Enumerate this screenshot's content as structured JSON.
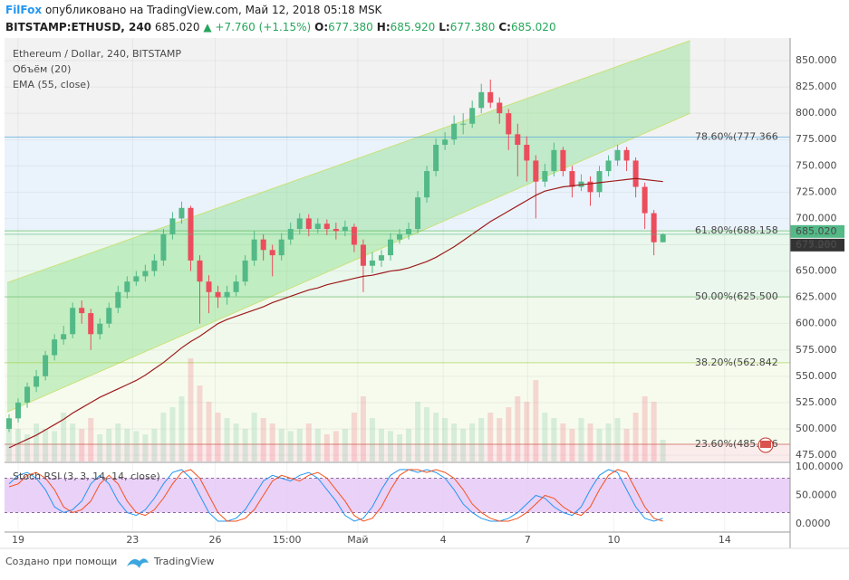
{
  "header": {
    "author": "FilFox",
    "published": "опубликовано на TradingView.com, Май 12, 2018 05:18 MSK",
    "symbol": "BITSTAMP:ETHUSD, 240",
    "price": "685.020",
    "change": "▲ +7.760 (+1.15%)",
    "ohlc": [
      {
        "key": "O:",
        "value": "677.380"
      },
      {
        "key": "H:",
        "value": "685.920"
      },
      {
        "key": "L:",
        "value": "677.380"
      },
      {
        "key": "C:",
        "value": "685.020"
      }
    ]
  },
  "footer": {
    "text": "Создано при помощи",
    "brand": "TradingView"
  },
  "chart_data": {
    "type": "candlestick",
    "legend": [
      "Ethereum / Dollar, 240, BITSTAMP",
      "Объём (20)",
      "EMA (55, close)"
    ],
    "up_color": "#53b987",
    "down_color": "#eb4d5c",
    "grid": true,
    "xlim": [
      -0.5,
      86
    ],
    "ylim": [
      469,
      871.5
    ],
    "yticks": [
      {
        "value": 850,
        "label": "850.000"
      },
      {
        "value": 825,
        "label": "825.000"
      },
      {
        "value": 800,
        "label": "800.000"
      },
      {
        "value": 775,
        "label": "775.000"
      },
      {
        "value": 750,
        "label": "750.000"
      },
      {
        "value": 725,
        "label": "725.000"
      },
      {
        "value": 700,
        "label": "700.000"
      },
      {
        "value": 675,
        "label": "675.000"
      },
      {
        "value": 650,
        "label": "650.000"
      },
      {
        "value": 625,
        "label": "625.000"
      },
      {
        "value": 600,
        "label": "600.000"
      },
      {
        "value": 575,
        "label": "575.000"
      },
      {
        "value": 550,
        "label": "550.000"
      },
      {
        "value": 525,
        "label": "525.000"
      },
      {
        "value": 500,
        "label": "500.000"
      },
      {
        "value": 475,
        "label": "475.000"
      }
    ],
    "xticks": [
      {
        "value": 1,
        "label": "19"
      },
      {
        "value": 13.6,
        "label": "23"
      },
      {
        "value": 22.7,
        "label": "26"
      },
      {
        "value": 30.6,
        "label": "15:00"
      },
      {
        "value": 38.4,
        "label": "Май"
      },
      {
        "value": 47.8,
        "label": "4"
      },
      {
        "value": 57.1,
        "label": "7"
      },
      {
        "value": 66.6,
        "label": "10"
      },
      {
        "value": 78.8,
        "label": "14"
      }
    ],
    "candles": [
      [
        500,
        514,
        497,
        510
      ],
      [
        510,
        529,
        506,
        525
      ],
      [
        525,
        544,
        520,
        540
      ],
      [
        540,
        556,
        535,
        550
      ],
      [
        550,
        574,
        546,
        570
      ],
      [
        570,
        590,
        565,
        585
      ],
      [
        585,
        598,
        580,
        590
      ],
      [
        590,
        620,
        586,
        615
      ],
      [
        615,
        622,
        600,
        610
      ],
      [
        610,
        614,
        575,
        590
      ],
      [
        590,
        605,
        585,
        600
      ],
      [
        600,
        620,
        596,
        615
      ],
      [
        615,
        636,
        610,
        630
      ],
      [
        630,
        645,
        624,
        640
      ],
      [
        640,
        650,
        636,
        645
      ],
      [
        645,
        656,
        640,
        650
      ],
      [
        650,
        666,
        645,
        660
      ],
      [
        660,
        690,
        655,
        685
      ],
      [
        685,
        706,
        680,
        700
      ],
      [
        700,
        716,
        695,
        710
      ],
      [
        710,
        712,
        650,
        660
      ],
      [
        660,
        665,
        600,
        640
      ],
      [
        640,
        646,
        610,
        630
      ],
      [
        630,
        636,
        615,
        625
      ],
      [
        625,
        636,
        618,
        630
      ],
      [
        630,
        646,
        626,
        640
      ],
      [
        640,
        665,
        636,
        660
      ],
      [
        660,
        688,
        655,
        680
      ],
      [
        680,
        685,
        660,
        670
      ],
      [
        670,
        675,
        645,
        665
      ],
      [
        665,
        686,
        660,
        680
      ],
      [
        680,
        696,
        675,
        690
      ],
      [
        690,
        705,
        685,
        700
      ],
      [
        700,
        704,
        683,
        690
      ],
      [
        690,
        700,
        686,
        695
      ],
      [
        695,
        699,
        684,
        690
      ],
      [
        690,
        696,
        680,
        688
      ],
      [
        688,
        698,
        683,
        692
      ],
      [
        692,
        695,
        668,
        675
      ],
      [
        675,
        680,
        630,
        655
      ],
      [
        655,
        668,
        648,
        660
      ],
      [
        660,
        670,
        654,
        665
      ],
      [
        665,
        686,
        660,
        680
      ],
      [
        680,
        690,
        676,
        685
      ],
      [
        685,
        696,
        680,
        690
      ],
      [
        690,
        726,
        686,
        720
      ],
      [
        720,
        750,
        715,
        745
      ],
      [
        745,
        776,
        740,
        770
      ],
      [
        770,
        782,
        765,
        775
      ],
      [
        775,
        798,
        770,
        790
      ],
      [
        790,
        800,
        780,
        790
      ],
      [
        790,
        812,
        786,
        805
      ],
      [
        805,
        828,
        800,
        820
      ],
      [
        820,
        832,
        805,
        810
      ],
      [
        810,
        815,
        790,
        800
      ],
      [
        800,
        804,
        765,
        780
      ],
      [
        780,
        790,
        740,
        770
      ],
      [
        770,
        778,
        735,
        755
      ],
      [
        755,
        760,
        700,
        735
      ],
      [
        735,
        752,
        730,
        745
      ],
      [
        745,
        772,
        740,
        765
      ],
      [
        765,
        768,
        740,
        745
      ],
      [
        745,
        750,
        720,
        730
      ],
      [
        730,
        742,
        726,
        735
      ],
      [
        735,
        740,
        712,
        725
      ],
      [
        725,
        750,
        720,
        745
      ],
      [
        745,
        760,
        740,
        755
      ],
      [
        755,
        770,
        750,
        765
      ],
      [
        765,
        768,
        745,
        755
      ],
      [
        755,
        758,
        720,
        730
      ],
      [
        730,
        734,
        690,
        705
      ],
      [
        705,
        708,
        665,
        677.38
      ],
      [
        677.38,
        685.92,
        677.38,
        685.02
      ]
    ],
    "volume": [
      40,
      30,
      25,
      35,
      30,
      28,
      45,
      35,
      30,
      40,
      25,
      30,
      35,
      30,
      28,
      25,
      30,
      45,
      50,
      60,
      95,
      70,
      55,
      45,
      40,
      35,
      30,
      45,
      40,
      35,
      30,
      28,
      30,
      35,
      30,
      25,
      28,
      30,
      45,
      60,
      40,
      30,
      28,
      25,
      30,
      55,
      50,
      45,
      40,
      35,
      30,
      35,
      40,
      45,
      40,
      50,
      60,
      55,
      75,
      45,
      40,
      35,
      30,
      40,
      35,
      30,
      35,
      40,
      30,
      45,
      60,
      55,
      20
    ],
    "ema": {
      "color": "#9c1c1c",
      "values": [
        482,
        486,
        490,
        494,
        499,
        504,
        509,
        515,
        520,
        525,
        530,
        534,
        538,
        542,
        546,
        551,
        557,
        563,
        570,
        577,
        583,
        588,
        594,
        600,
        604,
        607,
        610,
        613,
        616,
        620,
        623,
        626,
        629,
        632,
        634,
        637,
        639,
        641,
        643,
        645,
        646,
        648,
        650,
        651,
        653,
        656,
        659,
        663,
        668,
        673,
        679,
        685,
        691,
        697,
        702,
        707,
        712,
        717,
        722,
        726,
        728,
        730,
        731,
        732,
        733,
        734,
        735,
        736,
        737,
        738,
        737,
        736,
        735
      ]
    },
    "channel": {
      "x": [
        -0.2,
        75
      ],
      "upper": [
        639,
        869
      ],
      "lower": [
        516,
        800
      ]
    },
    "fib_above_fill": "#f2f2f2",
    "fib": [
      {
        "value": 777.366,
        "label": "78.60%(777.366",
        "color": "#3d9ad1",
        "fill": "#eaf3fb"
      },
      {
        "value": 688.158,
        "label": "61.80%(688.158",
        "color": "#4caf50",
        "fill": "#eaf7ec"
      },
      {
        "value": 625.5,
        "label": "50.00%(625.500",
        "color": "#66bb6a",
        "fill": "#f1f9ec"
      },
      {
        "value": 562.842,
        "label": "38.20%(562.842",
        "color": "#9ccc3a",
        "fill": "#f7fbee"
      },
      {
        "value": 485.316,
        "label": "23.60%(485.316",
        "color": "#c0392b",
        "fill": "#fbecec"
      }
    ],
    "price_tags": [
      {
        "value": 685.02,
        "label": "685.020",
        "color": "#53b987"
      },
      {
        "value": 677.26,
        "label": "677.260",
        "color": "#333333"
      }
    ],
    "stoch": {
      "title": "Stoch RSI (3, 3, 14, 14, close)",
      "ylim": [
        -14,
        106
      ],
      "yticks": [
        {
          "value": 100,
          "label": "100.0000"
        },
        {
          "value": 50,
          "label": "50.0000"
        },
        {
          "value": 0,
          "label": "0.0000"
        }
      ],
      "levels": [
        20,
        80
      ],
      "band_color": "#e5c6f5",
      "series": [
        {
          "color": "#2196f3",
          "values": [
            70,
            85,
            90,
            80,
            60,
            30,
            20,
            25,
            40,
            70,
            85,
            70,
            40,
            20,
            15,
            25,
            45,
            70,
            90,
            95,
            80,
            50,
            20,
            5,
            5,
            10,
            25,
            50,
            75,
            85,
            80,
            75,
            85,
            90,
            80,
            60,
            40,
            15,
            5,
            10,
            30,
            60,
            85,
            95,
            95,
            90,
            95,
            90,
            80,
            60,
            35,
            20,
            10,
            5,
            5,
            10,
            20,
            35,
            50,
            45,
            30,
            20,
            15,
            30,
            60,
            85,
            95,
            90,
            60,
            30,
            10,
            5,
            10
          ]
        },
        {
          "color": "#f4511e",
          "values": [
            65,
            70,
            85,
            90,
            80,
            60,
            30,
            20,
            25,
            40,
            70,
            85,
            70,
            40,
            20,
            15,
            25,
            45,
            70,
            90,
            95,
            80,
            50,
            20,
            5,
            5,
            10,
            25,
            50,
            75,
            85,
            80,
            75,
            85,
            90,
            80,
            60,
            40,
            15,
            5,
            10,
            30,
            60,
            85,
            95,
            95,
            90,
            95,
            90,
            80,
            60,
            35,
            20,
            10,
            5,
            5,
            10,
            20,
            35,
            50,
            45,
            30,
            20,
            15,
            30,
            60,
            85,
            95,
            90,
            60,
            30,
            10,
            5
          ]
        }
      ]
    }
  }
}
